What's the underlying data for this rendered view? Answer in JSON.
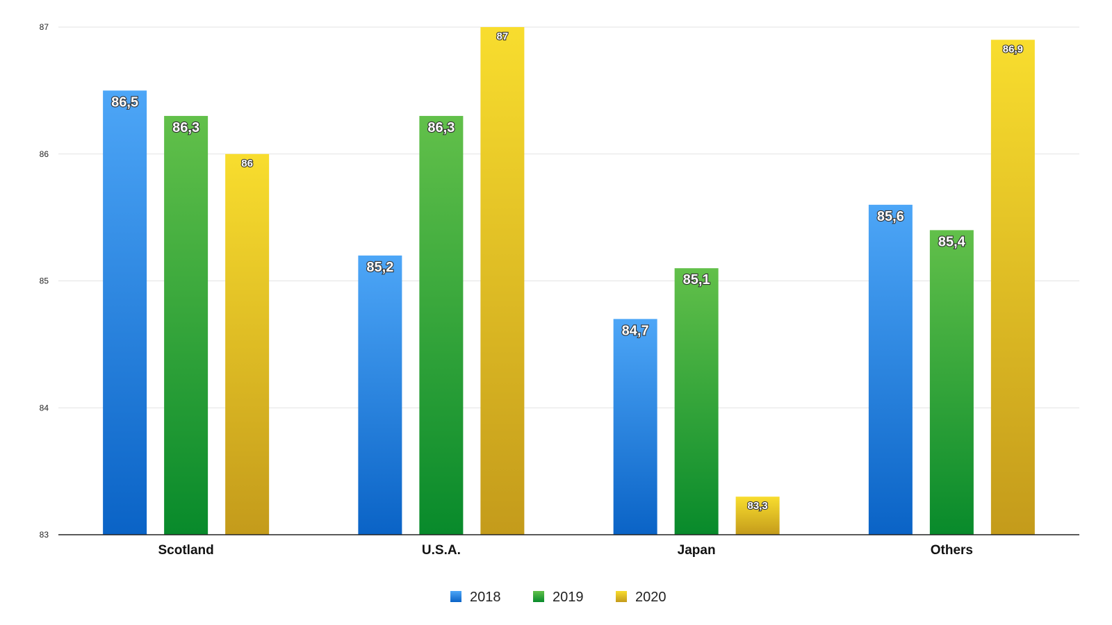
{
  "chart_data": {
    "type": "bar",
    "categories": [
      "Scotland",
      "U.S.A.",
      "Japan",
      "Others"
    ],
    "series": [
      {
        "name": "2018",
        "values": [
          86.5,
          85.2,
          84.7,
          85.6
        ],
        "labels": [
          "86,5",
          "85,2",
          "84,7",
          "85,6"
        ],
        "color_top": "#4da6f7",
        "color_bottom": "#0a63c6"
      },
      {
        "name": "2019",
        "values": [
          86.3,
          86.3,
          85.1,
          85.4
        ],
        "labels": [
          "86,3",
          "86,3",
          "85,1",
          "85,4"
        ],
        "color_top": "#62c04a",
        "color_bottom": "#088a2b"
      },
      {
        "name": "2020",
        "values": [
          86.0,
          87.0,
          83.3,
          86.9
        ],
        "labels": [
          "86",
          "87",
          "83,3",
          "86,9"
        ],
        "color_top": "#f8dd2e",
        "color_bottom": "#c49b1b"
      }
    ],
    "ylim": [
      83,
      87
    ],
    "yticks": [
      "83",
      "84",
      "85",
      "86",
      "87"
    ],
    "grid": true,
    "legend_position": "bottom-center"
  }
}
